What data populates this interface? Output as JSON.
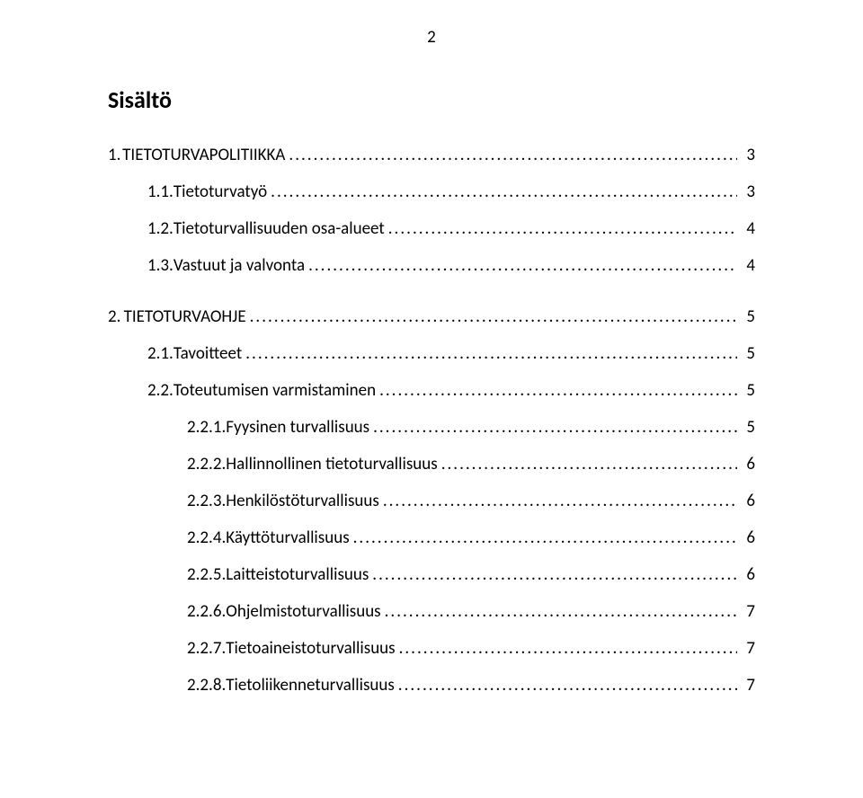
{
  "page_number": "2",
  "heading": "Sisältö",
  "entries": [
    {
      "indent": 0,
      "num": "1.",
      "title": "TIETOTURVAPOLITIIKKA",
      "page": "3",
      "gap_after": false,
      "num_w": "w-num-0"
    },
    {
      "indent": 1,
      "num": "1.1.",
      "title": "Tietoturvatyö",
      "page": "3",
      "gap_after": false,
      "num_w": "w-num-1"
    },
    {
      "indent": 1,
      "num": "1.2.",
      "title": "Tietoturvallisuuden osa-alueet",
      "page": "4",
      "gap_after": false,
      "num_w": "w-num-1"
    },
    {
      "indent": 1,
      "num": "1.3.",
      "title": "Vastuut ja valvonta",
      "page": "4",
      "gap_after": true,
      "num_w": "w-num-1"
    },
    {
      "indent": 0,
      "num": "2.",
      "title": "TIETOTURVAOHJE",
      "page": "5",
      "gap_after": false,
      "num_w": "w-num-0"
    },
    {
      "indent": 1,
      "num": "2.1.",
      "title": "Tavoitteet",
      "page": "5",
      "gap_after": false,
      "num_w": "w-num-1"
    },
    {
      "indent": 1,
      "num": "2.2.",
      "title": "Toteutumisen varmistaminen",
      "page": "5",
      "gap_after": false,
      "num_w": "w-num-1"
    },
    {
      "indent": 2,
      "num": "2.2.1.",
      "title": "Fyysinen turvallisuus",
      "page": "5",
      "gap_after": false,
      "num_w": "w-num-2"
    },
    {
      "indent": 2,
      "num": "2.2.2.",
      "title": "Hallinnollinen tietoturvallisuus",
      "page": "6",
      "gap_after": false,
      "num_w": "w-num-2"
    },
    {
      "indent": 2,
      "num": "2.2.3.",
      "title": "Henkilöstöturvallisuus",
      "page": "6",
      "gap_after": false,
      "num_w": "w-num-2"
    },
    {
      "indent": 2,
      "num": "2.2.4.",
      "title": "Käyttöturvallisuus",
      "page": "6",
      "gap_after": false,
      "num_w": "w-num-2"
    },
    {
      "indent": 2,
      "num": "2.2.5.",
      "title": "Laitteistoturvallisuus",
      "page": "6",
      "gap_after": false,
      "num_w": "w-num-2"
    },
    {
      "indent": 2,
      "num": "2.2.6.",
      "title": "Ohjelmistoturvallisuus",
      "page": "7",
      "gap_after": false,
      "num_w": "w-num-2"
    },
    {
      "indent": 2,
      "num": "2.2.7.",
      "title": "Tietoaineistoturvallisuus",
      "page": "7",
      "gap_after": false,
      "num_w": "w-num-2"
    },
    {
      "indent": 2,
      "num": "2.2.8.",
      "title": "Tietoliikenneturvallisuus",
      "page": "7",
      "gap_after": false,
      "num_w": "w-num-2"
    }
  ]
}
